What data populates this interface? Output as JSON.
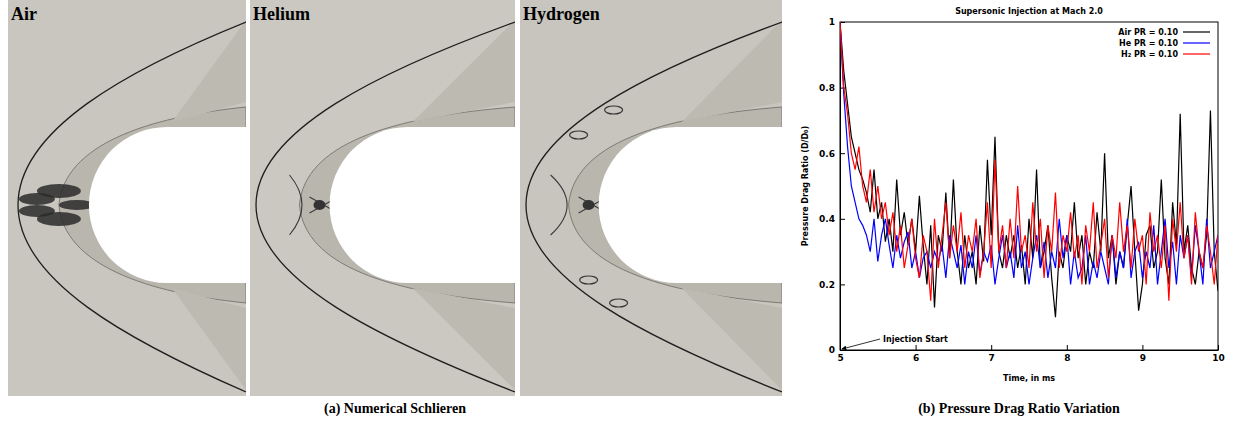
{
  "figure": {
    "panels": [
      "Air",
      "Helium",
      "Hydrogen"
    ],
    "caption_a": "(a) Numerical Schlieren",
    "caption_b": "(b) Pressure Drag Ratio Variation"
  },
  "chart_data": {
    "type": "line",
    "title": "Supersonic Injection at Mach 2.0",
    "x_label": "Time, in ms",
    "y_label": "Pressure Drag Ratio (D/D₀)",
    "xlim": [
      5,
      10
    ],
    "xticks": [
      5,
      6,
      7,
      8,
      9,
      10
    ],
    "ylim": [
      0,
      1
    ],
    "yticks": [
      0,
      0.2,
      0.4,
      0.6,
      0.8,
      1
    ],
    "legend": "top-right",
    "annotations": [
      {
        "text": "Injection Start",
        "x": 5,
        "y": 0
      }
    ],
    "x": [
      5,
      5.05,
      5.1,
      5.15,
      5.2,
      5.25,
      5.3,
      5.35,
      5.4,
      5.45,
      5.5,
      5.55,
      5.6,
      5.65,
      5.7,
      5.75,
      5.8,
      5.85,
      5.9,
      5.95,
      6,
      6.05,
      6.1,
      6.15,
      6.2,
      6.25,
      6.3,
      6.35,
      6.4,
      6.45,
      6.5,
      6.55,
      6.6,
      6.65,
      6.7,
      6.75,
      6.8,
      6.85,
      6.9,
      6.95,
      7,
      7.05,
      7.1,
      7.15,
      7.2,
      7.25,
      7.3,
      7.35,
      7.4,
      7.45,
      7.5,
      7.55,
      7.6,
      7.65,
      7.7,
      7.75,
      7.8,
      7.85,
      7.9,
      7.95,
      8,
      8.05,
      8.1,
      8.15,
      8.2,
      8.25,
      8.3,
      8.35,
      8.4,
      8.45,
      8.5,
      8.55,
      8.6,
      8.65,
      8.7,
      8.75,
      8.8,
      8.85,
      8.9,
      8.95,
      9,
      9.05,
      9.1,
      9.15,
      9.2,
      9.25,
      9.3,
      9.35,
      9.4,
      9.45,
      9.5,
      9.55,
      9.6,
      9.65,
      9.7,
      9.75,
      9.8,
      9.85,
      9.9,
      9.95,
      10
    ],
    "series": [
      {
        "name": "Air PR = 0.10",
        "color": "#000000",
        "line_style": "solid",
        "marker": "none",
        "values": [
          1,
          0.85,
          0.75,
          0.65,
          0.6,
          0.55,
          0.52,
          0.48,
          0.42,
          0.55,
          0.4,
          0.45,
          0.33,
          0.4,
          0.3,
          0.52,
          0.35,
          0.42,
          0.32,
          0.4,
          0.3,
          0.47,
          0.32,
          0.2,
          0.38,
          0.13,
          0.35,
          0.3,
          0.48,
          0.28,
          0.52,
          0.3,
          0.2,
          0.35,
          0.25,
          0.3,
          0.2,
          0.38,
          0.27,
          0.58,
          0.35,
          0.65,
          0.3,
          0.25,
          0.35,
          0.28,
          0.35,
          0.25,
          0.32,
          0.2,
          0.4,
          0.28,
          0.55,
          0.25,
          0.3,
          0.38,
          0.22,
          0.1,
          0.3,
          0.25,
          0.35,
          0.3,
          0.45,
          0.28,
          0.35,
          0.2,
          0.3,
          0.25,
          0.42,
          0.3,
          0.6,
          0.28,
          0.35,
          0.2,
          0.3,
          0.25,
          0.38,
          0.5,
          0.3,
          0.12,
          0.2,
          0.35,
          0.38,
          0.25,
          0.3,
          0.52,
          0.28,
          0.2,
          0.45,
          0.32,
          0.72,
          0.3,
          0.38,
          0.25,
          0.2,
          0.3,
          0.25,
          0.35,
          0.73,
          0.3,
          0.18
        ]
      },
      {
        "name": "He PR = 0.10",
        "color": "#0000ff",
        "line_style": "solid",
        "marker": "none",
        "values": [
          1,
          0.78,
          0.62,
          0.5,
          0.45,
          0.4,
          0.38,
          0.35,
          0.3,
          0.4,
          0.27,
          0.35,
          0.4,
          0.32,
          0.25,
          0.35,
          0.28,
          0.33,
          0.36,
          0.25,
          0.3,
          0.22,
          0.28,
          0.3,
          0.25,
          0.3,
          0.27,
          0.32,
          0.22,
          0.35,
          0.3,
          0.25,
          0.32,
          0.2,
          0.3,
          0.25,
          0.35,
          0.23,
          0.3,
          0.27,
          0.32,
          0.2,
          0.28,
          0.35,
          0.25,
          0.3,
          0.22,
          0.38,
          0.25,
          0.3,
          0.2,
          0.28,
          0.35,
          0.25,
          0.33,
          0.22,
          0.3,
          0.25,
          0.4,
          0.28,
          0.35,
          0.2,
          0.3,
          0.22,
          0.25,
          0.35,
          0.2,
          0.27,
          0.22,
          0.3,
          0.25,
          0.2,
          0.35,
          0.22,
          0.3,
          0.25,
          0.4,
          0.22,
          0.3,
          0.33,
          0.22,
          0.3,
          0.25,
          0.38,
          0.2,
          0.3,
          0.4,
          0.25,
          0.33,
          0.2,
          0.35,
          0.28,
          0.35,
          0.22,
          0.38,
          0.3,
          0.2,
          0.4,
          0.25,
          0.3,
          0.35
        ]
      },
      {
        "name": "H₂ PR = 0.10",
        "color": "#ff0000",
        "line_style": "solid",
        "marker": "none",
        "values": [
          1,
          0.8,
          0.72,
          0.6,
          0.55,
          0.62,
          0.5,
          0.45,
          0.55,
          0.42,
          0.5,
          0.4,
          0.45,
          0.35,
          0.42,
          0.3,
          0.38,
          0.25,
          0.32,
          0.4,
          0.28,
          0.22,
          0.35,
          0.3,
          0.15,
          0.4,
          0.25,
          0.35,
          0.45,
          0.28,
          0.38,
          0.3,
          0.42,
          0.25,
          0.35,
          0.3,
          0.4,
          0.22,
          0.3,
          0.45,
          0.25,
          0.58,
          0.3,
          0.38,
          0.25,
          0.4,
          0.28,
          0.5,
          0.3,
          0.35,
          0.25,
          0.45,
          0.3,
          0.4,
          0.22,
          0.38,
          0.3,
          0.48,
          0.25,
          0.35,
          0.3,
          0.42,
          0.28,
          0.35,
          0.2,
          0.38,
          0.3,
          0.45,
          0.25,
          0.32,
          0.4,
          0.22,
          0.35,
          0.28,
          0.45,
          0.3,
          0.38,
          0.25,
          0.4,
          0.3,
          0.35,
          0.2,
          0.42,
          0.3,
          0.35,
          0.25,
          0.38,
          0.15,
          0.4,
          0.3,
          0.45,
          0.28,
          0.35,
          0.2,
          0.42,
          0.3,
          0.25,
          0.38,
          0.3,
          0.2,
          0.35
        ]
      }
    ]
  }
}
